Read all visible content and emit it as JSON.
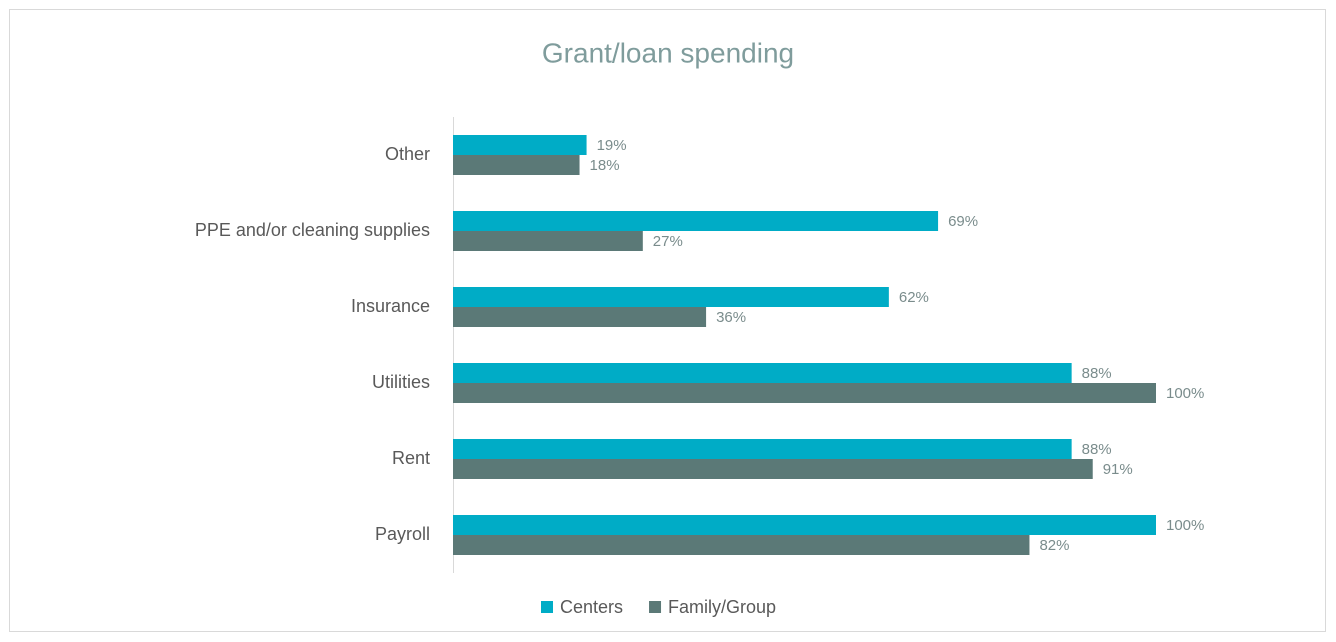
{
  "chart_data": {
    "type": "hbar",
    "title": "Grant/loan spending",
    "categories": [
      "Other",
      "PPE and/or cleaning supplies",
      "Insurance",
      "Utilities",
      "Rent",
      "Payroll"
    ],
    "series": [
      {
        "name": "Centers",
        "color": "#00acc6",
        "values": [
          19,
          69,
          62,
          88,
          88,
          100
        ],
        "value_labels": [
          "19%",
          "69%",
          "62%",
          "88%",
          "88%",
          "100%"
        ]
      },
      {
        "name": "Family/Group",
        "color": "#5b7977",
        "values": [
          18,
          27,
          36,
          100,
          91,
          82
        ],
        "value_labels": [
          "18%",
          "27%",
          "36%",
          "100%",
          "91%",
          "82%"
        ]
      }
    ],
    "xlim": [
      0,
      100
    ],
    "legend": "bottom"
  }
}
